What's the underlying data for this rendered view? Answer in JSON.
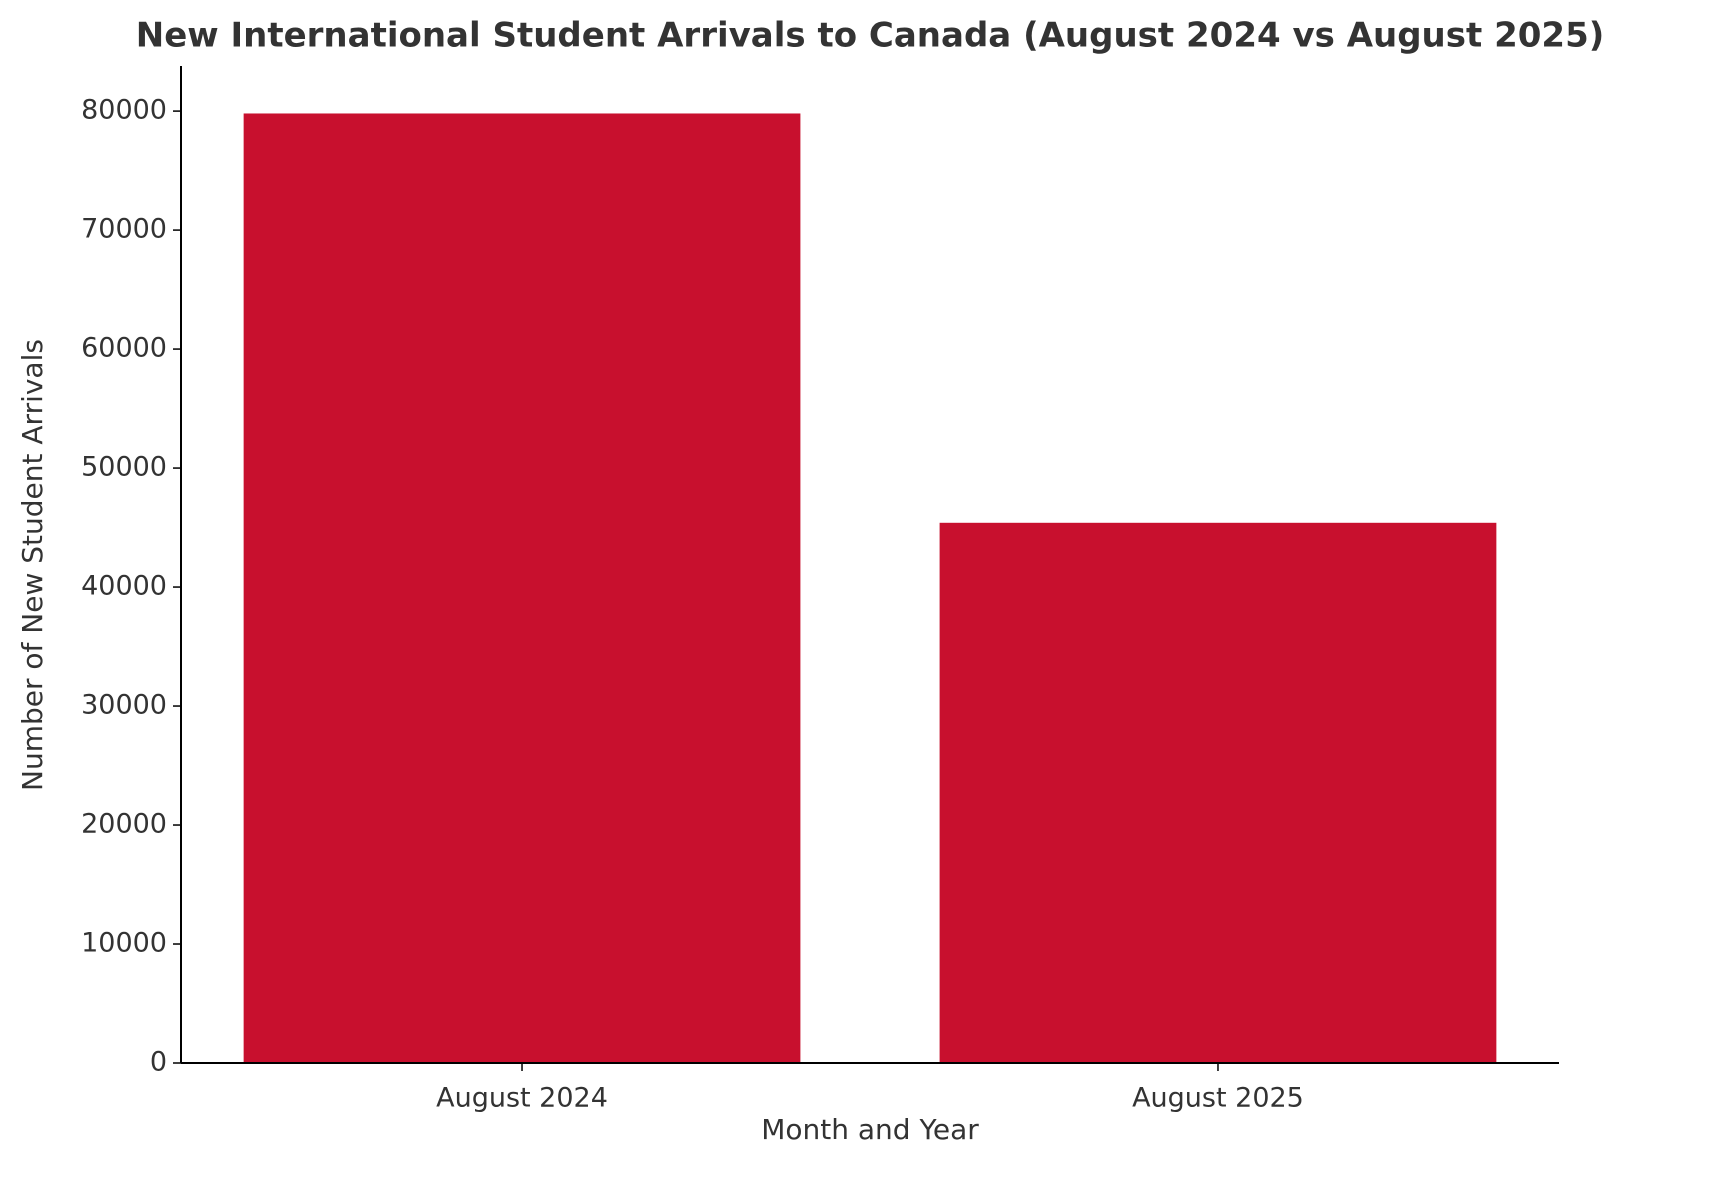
{
  "chart_data": {
    "type": "bar",
    "title": "New International Student Arrivals to Canada (August 2024 vs August 2025)",
    "x_label": "Month and Year",
    "y_label": "Number of New Student Arrivals",
    "categories": [
      "August 2024",
      "August 2025"
    ],
    "values": [
      79800,
      45400
    ],
    "color": "#c8102e",
    "ylim": [
      0,
      83790
    ],
    "yticks": [
      0,
      10000,
      20000,
      30000,
      40000,
      50000,
      60000,
      70000,
      80000
    ],
    "grid": false
  }
}
